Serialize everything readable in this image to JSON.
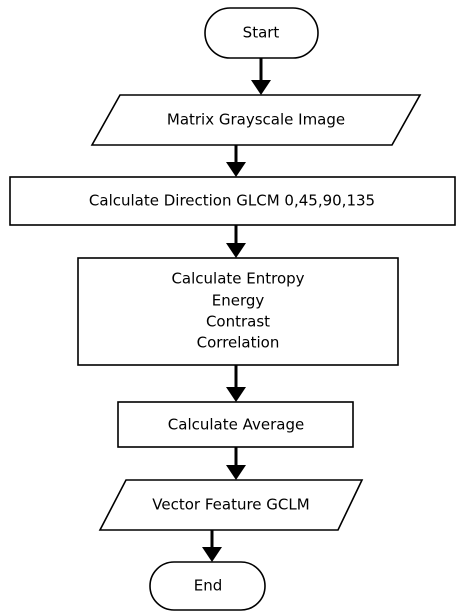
{
  "nodes": [
    {
      "label": "Start"
    },
    {
      "label": "Matrix Grayscale Image"
    },
    {
      "label": "Calculate Direction GLCM 0,45,90,135"
    },
    {
      "lines": [
        "Calculate Entropy",
        "Energy",
        "Contrast",
        "Correlation"
      ]
    },
    {
      "label": "Calculate Average"
    },
    {
      "label": "Vector Feature GCLM"
    },
    {
      "label": "End"
    }
  ]
}
